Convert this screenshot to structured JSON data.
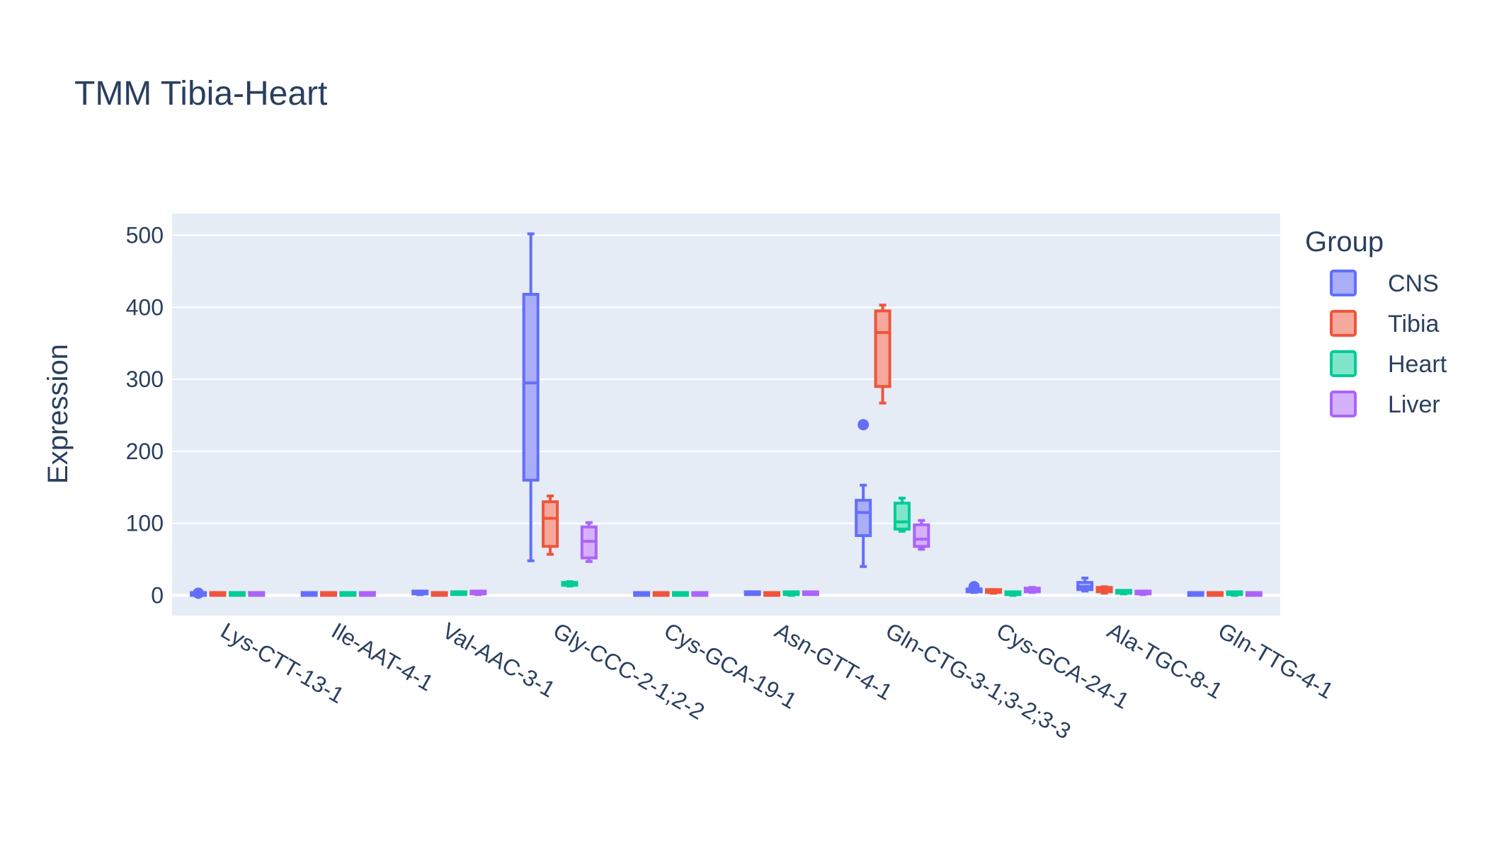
{
  "chart_data": {
    "type": "box",
    "title": "TMM Tibia-Heart",
    "xlabel": "",
    "ylabel": "Expression",
    "ylim": [
      -28,
      530
    ],
    "yticks": [
      0,
      100,
      200,
      300,
      400,
      500
    ],
    "ytick_labels": [
      "0",
      "100",
      "200",
      "300",
      "400",
      "500"
    ],
    "grid": true,
    "legend_title": "Group",
    "legend_position": "top-right",
    "categories": [
      "Lys-CTT-13-1",
      "Ile-AAT-4-1",
      "Val-AAC-3-1",
      "Gly-CCC-2-1;2-2",
      "Cys-GCA-19-1",
      "Asn-GTT-4-1",
      "Gln-CTG-3-1;3-2;3-3",
      "Cys-GCA-24-1",
      "Ala-TGC-8-1",
      "Gln-TTG-4-1"
    ],
    "series": [
      {
        "name": "CNS",
        "color": "#636efa",
        "fill": "#a9aef7",
        "boxes": [
          {
            "min": 0,
            "q1": 0,
            "median": 1,
            "q3": 2,
            "max": 3,
            "outliers": [
              3
            ]
          },
          {
            "min": 0,
            "q1": 0,
            "median": 1,
            "q3": 2,
            "max": 2,
            "outliers": []
          },
          {
            "min": 1,
            "q1": 2,
            "median": 3,
            "q3": 5,
            "max": 6,
            "outliers": []
          },
          {
            "min": 48,
            "q1": 160,
            "median": 295,
            "q3": 418,
            "max": 502,
            "outliers": []
          },
          {
            "min": 0,
            "q1": 0,
            "median": 1,
            "q3": 2,
            "max": 2,
            "outliers": []
          },
          {
            "min": 1,
            "q1": 1,
            "median": 2,
            "q3": 4,
            "max": 5,
            "outliers": []
          },
          {
            "min": 40,
            "q1": 83,
            "median": 115,
            "q3": 132,
            "max": 153,
            "outliers": [
              237
            ]
          },
          {
            "min": 4,
            "q1": 5,
            "median": 6,
            "q3": 8,
            "max": 9,
            "outliers": [
              12
            ]
          },
          {
            "min": 6,
            "q1": 8,
            "median": 12,
            "q3": 18,
            "max": 24,
            "outliers": []
          },
          {
            "min": 0,
            "q1": 0,
            "median": 1,
            "q3": 2,
            "max": 2,
            "outliers": []
          }
        ]
      },
      {
        "name": "Tibia",
        "color": "#ef553b",
        "fill": "#f5a99c",
        "boxes": [
          {
            "min": 0,
            "q1": 0,
            "median": 1,
            "q3": 2,
            "max": 2,
            "outliers": []
          },
          {
            "min": 0,
            "q1": 0,
            "median": 1,
            "q3": 2,
            "max": 2,
            "outliers": []
          },
          {
            "min": 0,
            "q1": 0,
            "median": 1,
            "q3": 2,
            "max": 3,
            "outliers": []
          },
          {
            "min": 57,
            "q1": 68,
            "median": 107,
            "q3": 130,
            "max": 138,
            "outliers": []
          },
          {
            "min": 0,
            "q1": 0,
            "median": 1,
            "q3": 2,
            "max": 2,
            "outliers": []
          },
          {
            "min": 0,
            "q1": 0,
            "median": 1,
            "q3": 2,
            "max": 2,
            "outliers": []
          },
          {
            "min": 267,
            "q1": 290,
            "median": 365,
            "q3": 395,
            "max": 403,
            "outliers": []
          },
          {
            "min": 3,
            "q1": 4,
            "median": 6,
            "q3": 8,
            "max": 8,
            "outliers": []
          },
          {
            "min": 3,
            "q1": 5,
            "median": 8,
            "q3": 11,
            "max": 12,
            "outliers": []
          },
          {
            "min": 0,
            "q1": 0,
            "median": 1,
            "q3": 2,
            "max": 2,
            "outliers": []
          }
        ]
      },
      {
        "name": "Heart",
        "color": "#00cc96",
        "fill": "#80e6cb",
        "boxes": [
          {
            "min": 0,
            "q1": 0,
            "median": 1,
            "q3": 2,
            "max": 2,
            "outliers": []
          },
          {
            "min": 0,
            "q1": 0,
            "median": 1,
            "q3": 2,
            "max": 2,
            "outliers": []
          },
          {
            "min": 1,
            "q1": 1,
            "median": 2,
            "q3": 4,
            "max": 5,
            "outliers": []
          },
          {
            "min": 13,
            "q1": 14,
            "median": 16,
            "q3": 18,
            "max": 19,
            "outliers": []
          },
          {
            "min": 0,
            "q1": 0,
            "median": 1,
            "q3": 2,
            "max": 2,
            "outliers": []
          },
          {
            "min": 0,
            "q1": 1,
            "median": 2,
            "q3": 3,
            "max": 3,
            "outliers": []
          },
          {
            "min": 89,
            "q1": 92,
            "median": 102,
            "q3": 128,
            "max": 135,
            "outliers": []
          },
          {
            "min": 0,
            "q1": 1,
            "median": 2,
            "q3": 3,
            "max": 3,
            "outliers": []
          },
          {
            "min": 2,
            "q1": 3,
            "median": 4,
            "q3": 5,
            "max": 6,
            "outliers": []
          },
          {
            "min": 0,
            "q1": 1,
            "median": 2,
            "q3": 3,
            "max": 3,
            "outliers": []
          }
        ]
      },
      {
        "name": "Liver",
        "color": "#ab63fa",
        "fill": "#d5b1fc",
        "boxes": [
          {
            "min": 0,
            "q1": 0,
            "median": 1,
            "q3": 2,
            "max": 2,
            "outliers": []
          },
          {
            "min": 0,
            "q1": 0,
            "median": 1,
            "q3": 2,
            "max": 2,
            "outliers": []
          },
          {
            "min": 1,
            "q1": 2,
            "median": 3,
            "q3": 4,
            "max": 5,
            "outliers": []
          },
          {
            "min": 47,
            "q1": 52,
            "median": 75,
            "q3": 95,
            "max": 101,
            "outliers": []
          },
          {
            "min": 0,
            "q1": 0,
            "median": 1,
            "q3": 2,
            "max": 2,
            "outliers": []
          },
          {
            "min": 1,
            "q1": 1,
            "median": 2,
            "q3": 3,
            "max": 4,
            "outliers": []
          },
          {
            "min": 64,
            "q1": 68,
            "median": 78,
            "q3": 98,
            "max": 104,
            "outliers": []
          },
          {
            "min": 4,
            "q1": 5,
            "median": 7,
            "q3": 10,
            "max": 11,
            "outliers": []
          },
          {
            "min": 1,
            "q1": 2,
            "median": 3,
            "q3": 5,
            "max": 6,
            "outliers": []
          },
          {
            "min": 0,
            "q1": 0,
            "median": 1,
            "q3": 2,
            "max": 2,
            "outliers": []
          }
        ]
      }
    ]
  }
}
